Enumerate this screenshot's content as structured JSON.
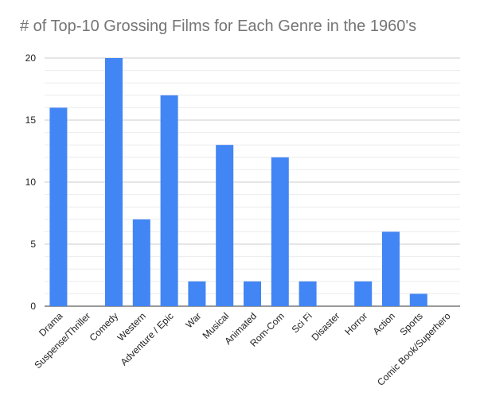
{
  "chart_data": {
    "type": "bar",
    "title": "# of Top-10 Grossing Films for Each Genre in the 1960's",
    "xlabel": "",
    "ylabel": "",
    "categories": [
      "Drama",
      "Suspense/Thriller",
      "Comedy",
      "Western",
      "Adventure / Epic",
      "War",
      "Musical",
      "Animated",
      "Rom-Com",
      "Sci Fi",
      "Disaster",
      "Horror",
      "Action",
      "Sports",
      "Comic Book/Superhero"
    ],
    "values": [
      16,
      0,
      20,
      7,
      17,
      2,
      13,
      2,
      12,
      2,
      0,
      2,
      6,
      1,
      0
    ],
    "ylim": [
      0,
      20
    ],
    "yticks": [
      0,
      5,
      10,
      15,
      20
    ],
    "grid": true,
    "legend": "none",
    "bar_color": "#4285f4",
    "gridline_color": "#d9d9d9"
  }
}
